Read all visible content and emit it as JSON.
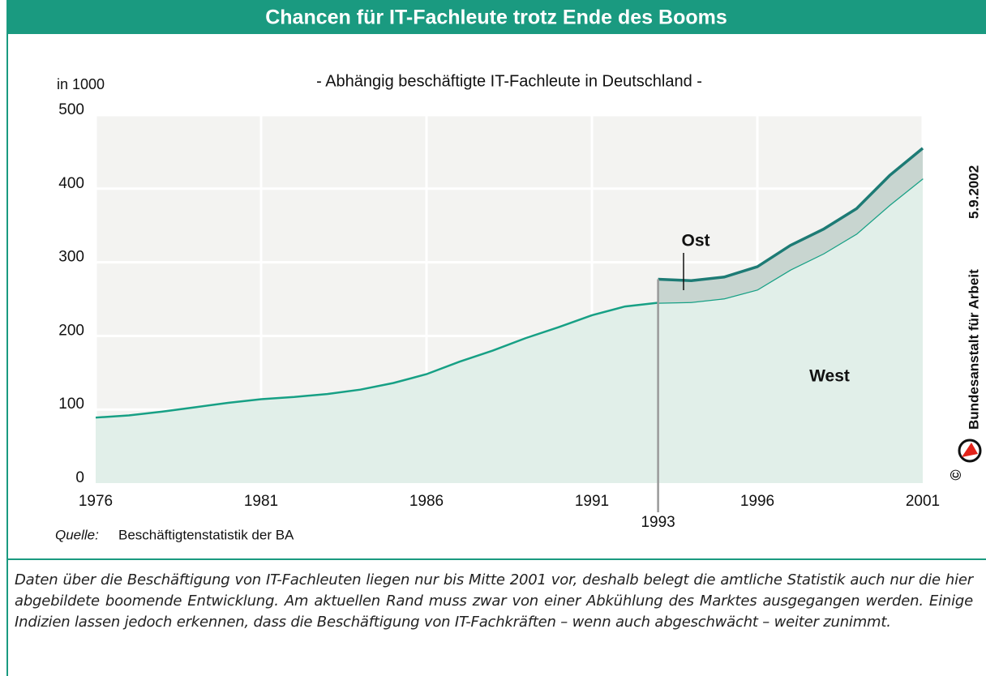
{
  "chart_data": {
    "type": "stacked_area",
    "title": "Chancen für IT-Fachleute trotz Ende des Booms",
    "subtitle": "- Abhängig beschäftigte IT-Fachleute in Deutschland -",
    "y_label": "in 1000",
    "x": [
      1976,
      1977,
      1978,
      1979,
      1980,
      1981,
      1982,
      1983,
      1984,
      1985,
      1986,
      1987,
      1988,
      1989,
      1990,
      1991,
      1992,
      1993,
      1994,
      1995,
      1996,
      1997,
      1998,
      1999,
      2000,
      2001
    ],
    "series": [
      {
        "name": "West",
        "color": "#17a085",
        "fill": "#e1efe9",
        "values": [
          89,
          92,
          97,
          103,
          109,
          114,
          117,
          121,
          127,
          136,
          148,
          165,
          180,
          197,
          212,
          228,
          240,
          245,
          246,
          251,
          263,
          290,
          312,
          339,
          378,
          414
        ]
      },
      {
        "name": "Ost",
        "color": "#1d7b75",
        "fill": "#c8d5d0",
        "values": [
          null,
          null,
          null,
          null,
          null,
          null,
          null,
          null,
          null,
          null,
          null,
          null,
          null,
          null,
          null,
          null,
          null,
          32,
          29,
          29,
          31,
          33,
          33,
          34,
          40,
          41
        ]
      }
    ],
    "xlim": [
      1976,
      2001
    ],
    "xticks": [
      1976,
      1981,
      1986,
      1991,
      1996,
      2001
    ],
    "ylim": [
      0,
      500
    ],
    "yticks": [
      0,
      100,
      200,
      300,
      400,
      500
    ],
    "grid": true,
    "reference_x": 1993,
    "source_label": "Quelle:",
    "source": "Beschäftigtenstatistik der BA",
    "publisher": "Bundesanstalt für Arbeit",
    "date": "5.9.2002",
    "copyright": "©"
  },
  "caption": "Daten über die Beschäftigung von IT-Fachleuten liegen nur bis Mitte 2001 vor, deshalb belegt die amtliche Statistik auch nur die hier abgebildete boomende Entwicklung. Am aktuellen Rand muss zwar von einer Abkühlung des Marktes ausgegangen werden. Einige Indizien lassen jedoch erkennen, dass die Beschäftigung von IT-Fachkräften – wenn auch abgeschwächt – weiter zunimmt."
}
